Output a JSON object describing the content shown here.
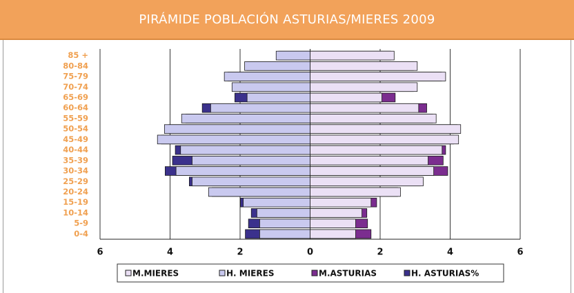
{
  "chart_data": {
    "type": "pyramid",
    "title": "PIRÁMIDE POBLACIÓN ASTURIAS/MIERES 2009",
    "categories": [
      "0-4",
      "5-9",
      "10-14",
      "15-19",
      "20-24",
      "25-29",
      "30-34",
      "35-39",
      "40-44",
      "45-49",
      "50-54",
      "55-59",
      "60-64",
      "65-69",
      "70-74",
      "75-79",
      "80-84",
      "85 +"
    ],
    "series": [
      {
        "name": "M.MIERES",
        "color": "#ebe0f5",
        "values": [
          1.3,
          1.3,
          1.48,
          1.74,
          2.58,
          3.23,
          3.53,
          3.37,
          3.77,
          4.24,
          4.3,
          3.6,
          3.1,
          2.05,
          3.06,
          3.87,
          3.06,
          2.4
        ]
      },
      {
        "name": "H. MIERES",
        "color": "#c9c9ef",
        "values": [
          -1.44,
          -1.44,
          -1.52,
          -1.91,
          -2.9,
          -3.37,
          -3.83,
          -3.37,
          -3.7,
          -4.36,
          -4.16,
          -3.67,
          -2.84,
          -1.8,
          -2.23,
          -2.45,
          -1.87,
          -0.97
        ]
      },
      {
        "name": "M.ASTURIAS",
        "color": "#7b2d8f",
        "values": [
          1.74,
          1.64,
          1.62,
          1.9,
          2.5,
          3.15,
          3.93,
          3.8,
          3.87,
          4.1,
          4.2,
          3.5,
          3.33,
          2.43,
          2.95,
          3.75,
          2.95,
          2.3
        ]
      },
      {
        "name": "H. ASTURIAS%",
        "color": "#3b318c",
        "values": [
          -1.85,
          -1.76,
          -1.68,
          -1.99,
          -2.8,
          -3.45,
          -4.14,
          -3.93,
          -3.85,
          -4.25,
          -4.05,
          -3.55,
          -3.08,
          -2.15,
          -2.15,
          -2.35,
          -1.8,
          -0.9
        ]
      }
    ],
    "xlim": [
      -6,
      6
    ],
    "xticks": [
      {
        "value": -6,
        "label": "6"
      },
      {
        "value": -4,
        "label": "4"
      },
      {
        "value": -2,
        "label": "2"
      },
      0,
      2,
      4,
      6
    ],
    "grid": true
  }
}
